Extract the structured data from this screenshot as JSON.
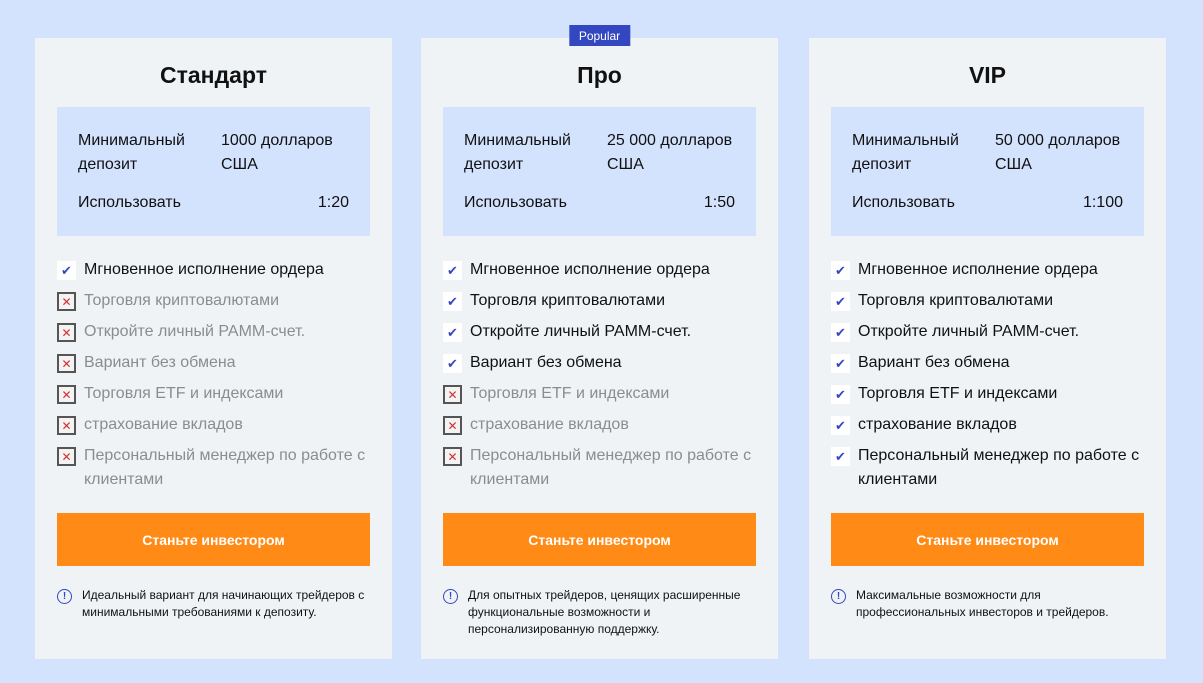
{
  "colors": {
    "background": "#d3e2fd",
    "accent": "#3347c0",
    "button": "#ff8a16"
  },
  "plans": [
    {
      "title": "Стандарт",
      "badge": null,
      "deposit_label": "Минимальный депозит",
      "deposit_value": "1000 долларов США",
      "leverage_label": "Использовать",
      "leverage_value": "1:20",
      "features": [
        {
          "text": "Мгновенное исполнение ордера",
          "included": true
        },
        {
          "text": "Торговля криптовалютами",
          "included": false
        },
        {
          "text": "Откройте личный РАММ-счет.",
          "included": false
        },
        {
          "text": "Вариант без обмена",
          "included": false
        },
        {
          "text": "Торговля ETF и индексами",
          "included": false
        },
        {
          "text": "страхование вкладов",
          "included": false
        },
        {
          "text": "Персональный менеджер по работе с клиентами",
          "included": false
        }
      ],
      "button": "Станьте инвестором",
      "note": "Идеальный вариант для начинающих трейдеров с минимальными требованиями к депозиту."
    },
    {
      "title": "Про",
      "badge": "Popular",
      "deposit_label": "Минимальный депозит",
      "deposit_value": "25 000 долларов США",
      "leverage_label": "Использовать",
      "leverage_value": "1:50",
      "features": [
        {
          "text": "Мгновенное исполнение ордера",
          "included": true
        },
        {
          "text": "Торговля криптовалютами",
          "included": true
        },
        {
          "text": "Откройте личный РАММ-счет.",
          "included": true
        },
        {
          "text": "Вариант без обмена",
          "included": true
        },
        {
          "text": "Торговля ETF и индексами",
          "included": false
        },
        {
          "text": "страхование вкладов",
          "included": false
        },
        {
          "text": "Персональный менеджер по работе с клиентами",
          "included": false
        }
      ],
      "button": "Станьте инвестором",
      "note": "Для опытных трейдеров, ценящих расширенные функциональные возможности и персонализированную поддержку."
    },
    {
      "title": "VIP",
      "badge": null,
      "deposit_label": "Минимальный депозит",
      "deposit_value": "50 000 долларов США",
      "leverage_label": "Использовать",
      "leverage_value": "1:100",
      "features": [
        {
          "text": "Мгновенное исполнение ордера",
          "included": true
        },
        {
          "text": "Торговля криптовалютами",
          "included": true
        },
        {
          "text": "Откройте личный РАММ-счет.",
          "included": true
        },
        {
          "text": "Вариант без обмена",
          "included": true
        },
        {
          "text": "Торговля ETF и индексами",
          "included": true
        },
        {
          "text": "страхование вкладов",
          "included": true
        },
        {
          "text": "Персональный менеджер по работе с клиентами",
          "included": true
        }
      ],
      "button": "Станьте инвестором",
      "note": "Максимальные возможности для профессиональных инвесторов и трейдеров."
    }
  ]
}
